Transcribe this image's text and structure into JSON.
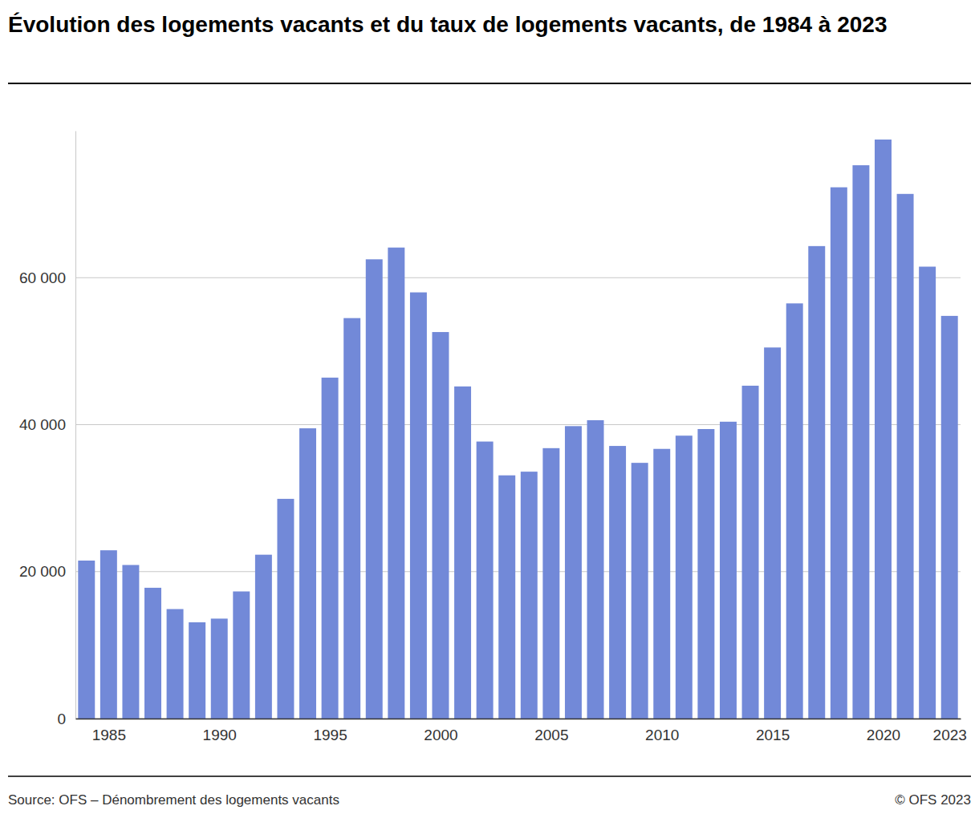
{
  "chart_data": {
    "type": "bar",
    "title": "Évolution des logements vacants et du taux de logements vacants, de 1984 à 2023",
    "source": "Source: OFS – Dénombrement des logements vacants",
    "credit": "© OFS 2023",
    "x": [
      1984,
      1985,
      1986,
      1987,
      1988,
      1989,
      1990,
      1991,
      1992,
      1993,
      1994,
      1995,
      1996,
      1997,
      1998,
      1999,
      2000,
      2001,
      2002,
      2003,
      2004,
      2005,
      2006,
      2007,
      2008,
      2009,
      2010,
      2011,
      2012,
      2013,
      2014,
      2015,
      2016,
      2017,
      2018,
      2019,
      2020,
      2021,
      2022,
      2023
    ],
    "values": [
      21500,
      22900,
      20900,
      17800,
      14900,
      13100,
      13600,
      17300,
      22300,
      29900,
      39500,
      46400,
      54500,
      62500,
      64100,
      58000,
      52600,
      45200,
      37700,
      33100,
      33600,
      36800,
      39800,
      40600,
      37100,
      34800,
      36700,
      38500,
      39400,
      40400,
      45300,
      50500,
      56500,
      64300,
      72300,
      75300,
      78800,
      71400,
      61500,
      54800
    ],
    "color": "#7289d8",
    "xlim": [
      1983.5,
      2023.5
    ],
    "xticks": [
      1985,
      1990,
      1995,
      2000,
      2005,
      2010,
      2015,
      2020,
      2023
    ],
    "ylim": [
      0,
      80000
    ],
    "yticks": [
      0,
      {
        "value": 20000,
        "label": "20 000"
      },
      {
        "value": 40000,
        "label": "40 000"
      },
      {
        "value": 60000,
        "label": "60 000"
      }
    ],
    "grid": true
  }
}
